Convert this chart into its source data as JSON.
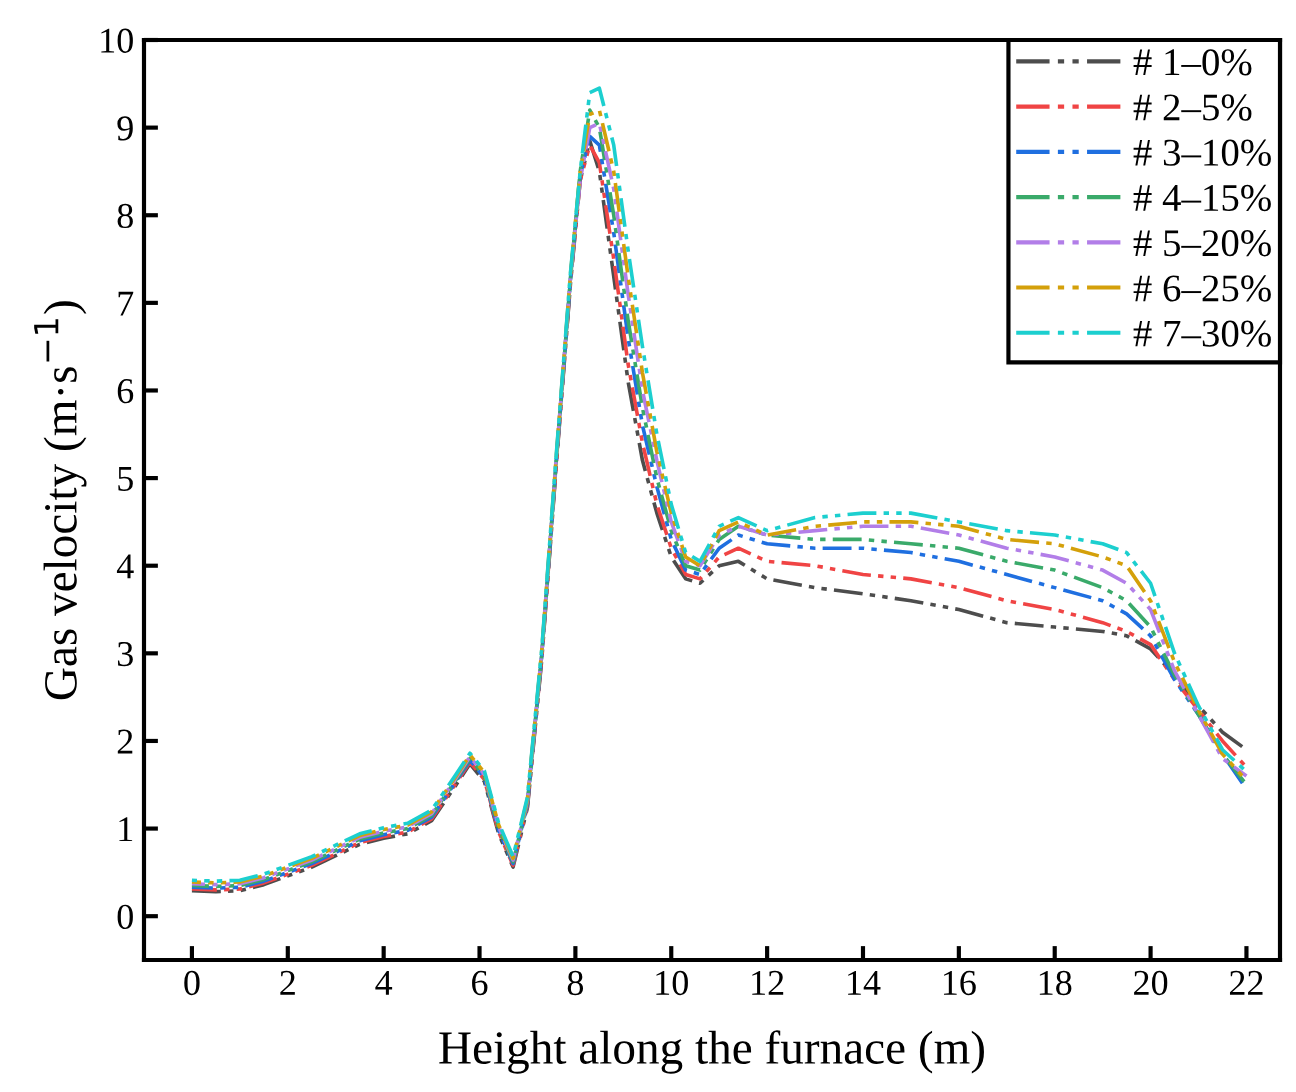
{
  "chart_data": {
    "type": "line",
    "xlabel": "Height along the furnace (m)",
    "ylabel": "Gas velocity (m·s$^{−1}$)",
    "x": [
      0,
      0.5,
      1,
      1.5,
      2,
      2.5,
      3,
      3.5,
      4,
      4.5,
      5,
      5.5,
      5.8,
      6.1,
      6.4,
      6.7,
      7.0,
      7.3,
      7.6,
      7.9,
      8.1,
      8.3,
      8.5,
      8.8,
      9.1,
      9.4,
      9.7,
      10.0,
      10.3,
      10.6,
      11.0,
      11.4,
      12,
      13,
      14,
      15,
      16,
      17,
      18,
      19,
      19.5,
      20,
      20.5,
      21,
      21.5,
      22
    ],
    "series": [
      {
        "name": "# 1–0%",
        "color": "#4d4d4d",
        "values": [
          0.29,
          0.28,
          0.29,
          0.36,
          0.46,
          0.56,
          0.69,
          0.82,
          0.89,
          0.94,
          1.09,
          1.49,
          1.74,
          1.54,
          0.94,
          0.56,
          1.24,
          2.94,
          5.14,
          7.24,
          8.4,
          8.85,
          8.5,
          7.3,
          6.1,
          5.2,
          4.6,
          4.1,
          3.85,
          3.8,
          4.0,
          4.05,
          3.85,
          3.75,
          3.68,
          3.6,
          3.5,
          3.35,
          3.3,
          3.25,
          3.2,
          3.05,
          2.75,
          2.4,
          2.1,
          1.9
        ]
      },
      {
        "name": "# 2–5%",
        "color": "#f04444",
        "values": [
          0.31,
          0.3,
          0.31,
          0.38,
          0.48,
          0.58,
          0.71,
          0.84,
          0.91,
          0.96,
          1.11,
          1.51,
          1.76,
          1.56,
          0.96,
          0.58,
          1.26,
          2.96,
          5.16,
          7.26,
          8.4,
          8.8,
          8.6,
          7.5,
          6.3,
          5.4,
          4.7,
          4.2,
          3.9,
          3.85,
          4.1,
          4.2,
          4.05,
          4.0,
          3.9,
          3.85,
          3.75,
          3.6,
          3.5,
          3.35,
          3.25,
          3.1,
          2.7,
          2.35,
          2.0,
          1.7
        ]
      },
      {
        "name": "# 3–10%",
        "color": "#1f6fe0",
        "values": [
          0.33,
          0.32,
          0.33,
          0.4,
          0.5,
          0.6,
          0.73,
          0.86,
          0.93,
          0.98,
          1.13,
          1.53,
          1.78,
          1.58,
          0.98,
          0.6,
          1.28,
          2.98,
          5.18,
          7.28,
          8.45,
          8.9,
          8.8,
          7.8,
          6.6,
          5.6,
          4.9,
          4.3,
          3.95,
          3.9,
          4.2,
          4.35,
          4.25,
          4.2,
          4.2,
          4.15,
          4.05,
          3.9,
          3.75,
          3.6,
          3.45,
          3.2,
          2.7,
          2.3,
          1.85,
          1.45
        ]
      },
      {
        "name": "# 4–15%",
        "color": "#3aaa6a",
        "values": [
          0.35,
          0.34,
          0.35,
          0.42,
          0.52,
          0.62,
          0.75,
          0.88,
          0.95,
          1.0,
          1.15,
          1.55,
          1.8,
          1.6,
          1.0,
          0.62,
          1.3,
          3.0,
          5.2,
          7.3,
          8.5,
          9.2,
          9.0,
          8.0,
          6.8,
          5.8,
          5.0,
          4.4,
          4.0,
          3.95,
          4.3,
          4.45,
          4.35,
          4.3,
          4.3,
          4.25,
          4.2,
          4.05,
          3.95,
          3.75,
          3.6,
          3.3,
          2.75,
          2.3,
          1.85,
          1.5
        ]
      },
      {
        "name": "# 5–20%",
        "color": "#b27ee8",
        "values": [
          0.37,
          0.36,
          0.37,
          0.44,
          0.54,
          0.64,
          0.77,
          0.9,
          0.97,
          1.02,
          1.17,
          1.57,
          1.82,
          1.62,
          1.02,
          0.64,
          1.32,
          3.02,
          5.22,
          7.32,
          8.4,
          9.0,
          9.05,
          8.3,
          7.1,
          6.0,
          5.2,
          4.5,
          4.05,
          4.0,
          4.35,
          4.45,
          4.35,
          4.4,
          4.45,
          4.45,
          4.35,
          4.2,
          4.1,
          3.95,
          3.8,
          3.5,
          2.8,
          2.3,
          1.8,
          1.6
        ]
      },
      {
        "name": "# 6–25%",
        "color": "#d4a00a",
        "values": [
          0.39,
          0.38,
          0.39,
          0.46,
          0.56,
          0.66,
          0.79,
          0.92,
          0.99,
          1.04,
          1.19,
          1.59,
          1.84,
          1.64,
          1.04,
          0.66,
          1.34,
          3.04,
          5.24,
          7.34,
          8.5,
          9.15,
          9.2,
          8.5,
          7.3,
          6.2,
          5.3,
          4.6,
          4.1,
          4.0,
          4.4,
          4.5,
          4.35,
          4.45,
          4.5,
          4.5,
          4.45,
          4.3,
          4.25,
          4.1,
          4.0,
          3.6,
          2.9,
          2.35,
          1.85,
          1.55
        ]
      },
      {
        "name": "# 7–30%",
        "color": "#1ccfcf",
        "values": [
          0.41,
          0.4,
          0.41,
          0.48,
          0.58,
          0.68,
          0.81,
          0.94,
          1.01,
          1.06,
          1.21,
          1.61,
          1.86,
          1.66,
          1.06,
          0.68,
          1.36,
          3.06,
          5.26,
          7.36,
          8.5,
          9.4,
          9.45,
          8.8,
          7.6,
          6.5,
          5.5,
          4.7,
          4.15,
          4.05,
          4.45,
          4.55,
          4.4,
          4.55,
          4.6,
          4.6,
          4.5,
          4.4,
          4.35,
          4.25,
          4.15,
          3.8,
          3.0,
          2.4,
          1.9,
          1.65
        ]
      }
    ],
    "xlim": [
      -1,
      22.7
    ],
    "ylim": [
      -0.5,
      10
    ],
    "xticks": [
      0,
      2,
      4,
      6,
      8,
      10,
      12,
      14,
      16,
      18,
      20,
      22
    ],
    "yticks": [
      0,
      1,
      2,
      3,
      4,
      5,
      6,
      7,
      8,
      9,
      10
    ],
    "grid": false,
    "legend": "top right",
    "line_style": "dashed",
    "marker": "none"
  }
}
